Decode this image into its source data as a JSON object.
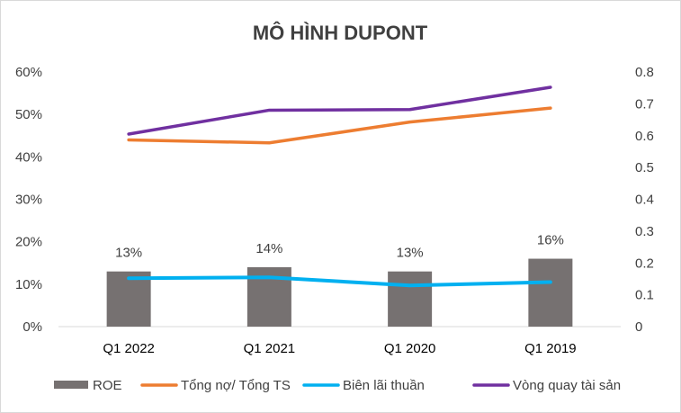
{
  "chart_data": {
    "type": "bar+line",
    "title": "MÔ HÌNH DUPONT",
    "categories": [
      "Q1 2022",
      "Q1 2021",
      "Q1 2020",
      "Q1 2019"
    ],
    "left_axis": {
      "ticks": [
        "0%",
        "10%",
        "20%",
        "30%",
        "40%",
        "50%",
        "60%"
      ],
      "ylim": [
        0,
        0.6
      ]
    },
    "right_axis": {
      "ticks": [
        "0",
        "0.1",
        "0.2",
        "0.3",
        "0.4",
        "0.5",
        "0.6",
        "0.7",
        "0.8"
      ],
      "ylim": [
        0,
        0.8
      ]
    },
    "series": [
      {
        "name": "ROE",
        "kind": "bar",
        "axis": "left",
        "color": "#767171",
        "values": [
          0.13,
          0.14,
          0.13,
          0.16
        ],
        "labels": [
          "13%",
          "14%",
          "13%",
          "16%"
        ]
      },
      {
        "name": "Tổng nợ/ Tổng TS",
        "kind": "line",
        "axis": "left",
        "color": "#ED7D31",
        "values": [
          0.44,
          0.433,
          0.482,
          0.515
        ]
      },
      {
        "name": "Biên lãi thuần",
        "kind": "line",
        "axis": "left",
        "color": "#00B0F0",
        "values": [
          0.114,
          0.116,
          0.097,
          0.105
        ]
      },
      {
        "name": "Vòng quay tài sản",
        "kind": "line",
        "axis": "right",
        "color": "#7030A0",
        "values": [
          0.605,
          0.68,
          0.682,
          0.752
        ]
      }
    ],
    "grid": false,
    "legend_position": "bottom"
  }
}
